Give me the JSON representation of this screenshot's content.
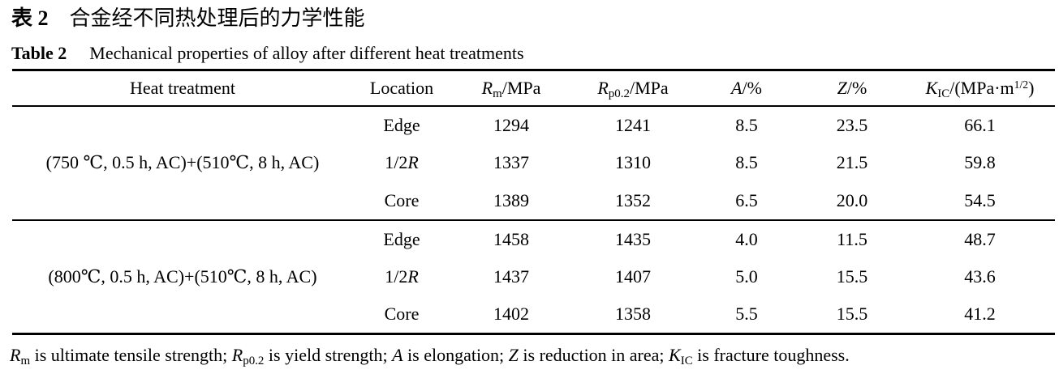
{
  "page": {
    "background_color": "#ffffff",
    "text_color": "#000000"
  },
  "captions": {
    "zh": {
      "label": "表 2",
      "title": "合金经不同热处理后的力学性能"
    },
    "en": {
      "label": "Table 2",
      "title": "Mechanical properties of alloy after different heat treatments"
    }
  },
  "table": {
    "headers": {
      "heat_treatment": [
        {
          "v": "Heat treatment"
        }
      ],
      "location": [
        {
          "v": "Location"
        }
      ],
      "rm": [
        {
          "v": "R",
          "i": true
        },
        {
          "v": "m",
          "sub": true
        },
        {
          "v": "/MPa"
        }
      ],
      "rp02": [
        {
          "v": "R",
          "i": true
        },
        {
          "v": "p0.2",
          "sub": true
        },
        {
          "v": "/MPa"
        }
      ],
      "a": [
        {
          "v": "A",
          "i": true
        },
        {
          "v": "/%"
        }
      ],
      "z": [
        {
          "v": "Z",
          "i": true
        },
        {
          "v": "/%"
        }
      ],
      "kic": [
        {
          "v": "K",
          "i": true
        },
        {
          "v": "IC",
          "sub": true
        },
        {
          "v": "/(MPa·m"
        },
        {
          "v": "1/2",
          "sup": true
        },
        {
          "v": ")"
        }
      ]
    },
    "groups": [
      {
        "treatment": "(750 ℃, 0.5 h, AC)+(510℃, 8 h, AC)",
        "rows": [
          {
            "location": [
              {
                "v": "Edge"
              }
            ],
            "rm": "1294",
            "rp02": "1241",
            "a": "8.5",
            "z": "23.5",
            "kic": "66.1"
          },
          {
            "location": [
              {
                "v": "1/2"
              },
              {
                "v": "R",
                "i": true
              }
            ],
            "rm": "1337",
            "rp02": "1310",
            "a": "8.5",
            "z": "21.5",
            "kic": "59.8"
          },
          {
            "location": [
              {
                "v": "Core"
              }
            ],
            "rm": "1389",
            "rp02": "1352",
            "a": "6.5",
            "z": "20.0",
            "kic": "54.5"
          }
        ]
      },
      {
        "treatment": "(800℃, 0.5 h, AC)+(510℃, 8 h, AC)",
        "rows": [
          {
            "location": [
              {
                "v": "Edge"
              }
            ],
            "rm": "1458",
            "rp02": "1435",
            "a": "4.0",
            "z": "11.5",
            "kic": "48.7"
          },
          {
            "location": [
              {
                "v": "1/2"
              },
              {
                "v": "R",
                "i": true
              }
            ],
            "rm": "1437",
            "rp02": "1407",
            "a": "5.0",
            "z": "15.5",
            "kic": "43.6"
          },
          {
            "location": [
              {
                "v": "Core"
              }
            ],
            "rm": "1402",
            "rp02": "1358",
            "a": "5.5",
            "z": "15.5",
            "kic": "41.2"
          }
        ]
      }
    ]
  },
  "footnote": [
    {
      "v": "R",
      "i": true
    },
    {
      "v": "m",
      "sub": true
    },
    {
      "v": " is ultimate tensile strength; "
    },
    {
      "v": "R",
      "i": true
    },
    {
      "v": "p0.2",
      "sub": true
    },
    {
      "v": " is yield strength; "
    },
    {
      "v": "A",
      "i": true
    },
    {
      "v": " is elongation; "
    },
    {
      "v": "Z",
      "i": true
    },
    {
      "v": " is reduction in area; "
    },
    {
      "v": "K",
      "i": true
    },
    {
      "v": "IC",
      "sub": true
    },
    {
      "v": " is fracture toughness."
    }
  ]
}
